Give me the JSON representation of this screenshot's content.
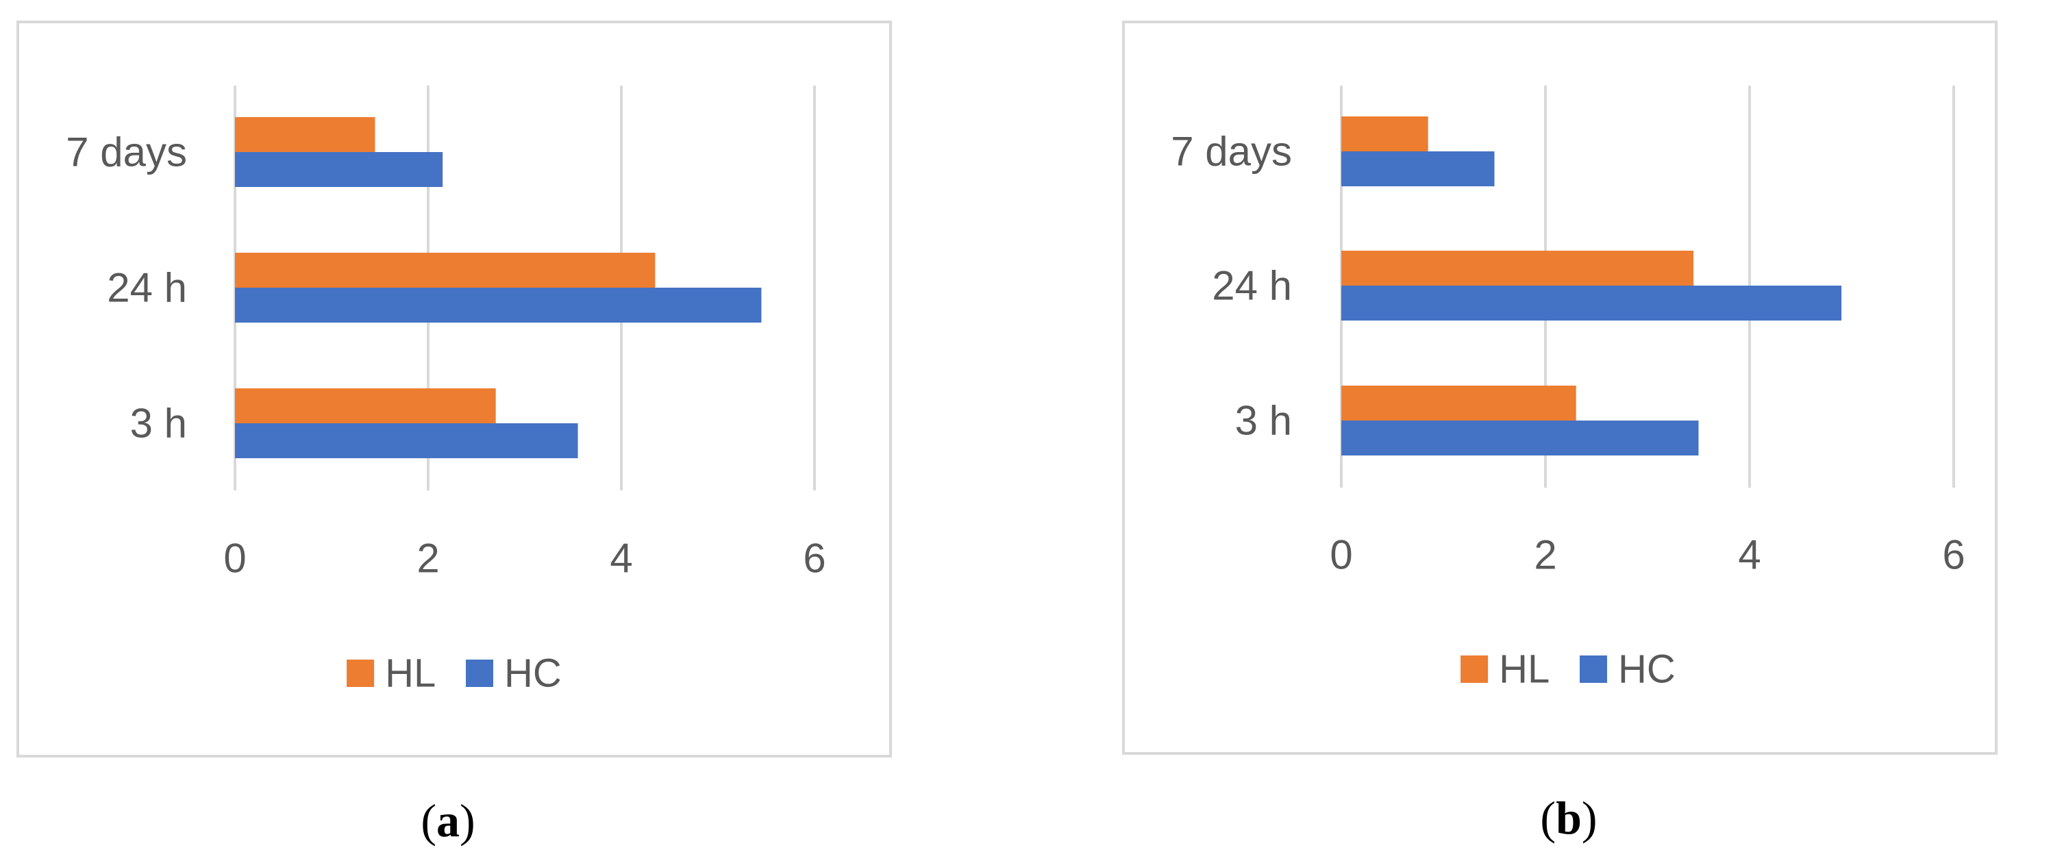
{
  "colors": {
    "HL": "#ED7D31",
    "HC": "#4472C4",
    "grid": "#D9D9D9",
    "frame": "#D9D9D9",
    "text": "#595959",
    "caption": "#000000"
  },
  "chart_data": [
    {
      "panel": "(a)",
      "panel_letter": "a",
      "type": "bar",
      "orientation": "horizontal",
      "categories": [
        "3 h",
        "24 h",
        "7 days"
      ],
      "series": [
        {
          "name": "HL",
          "values": [
            2.7,
            4.35,
            1.45
          ]
        },
        {
          "name": "HC",
          "values": [
            3.55,
            5.45,
            2.15
          ]
        }
      ],
      "xlim": [
        0,
        6
      ],
      "xticks": [
        "0",
        "2",
        "4",
        "6"
      ],
      "grid": true,
      "legend": "bottom"
    },
    {
      "panel": "(b)",
      "panel_letter": "b",
      "type": "bar",
      "orientation": "horizontal",
      "categories": [
        "3 h",
        "24 h",
        "7 days"
      ],
      "series": [
        {
          "name": "HL",
          "values": [
            2.3,
            3.45,
            0.85
          ]
        },
        {
          "name": "HC",
          "values": [
            3.5,
            4.9,
            1.5
          ]
        }
      ],
      "xlim": [
        0,
        6
      ],
      "xticks": [
        "0",
        "2",
        "4",
        "6"
      ],
      "grid": true,
      "legend": "bottom"
    }
  ]
}
